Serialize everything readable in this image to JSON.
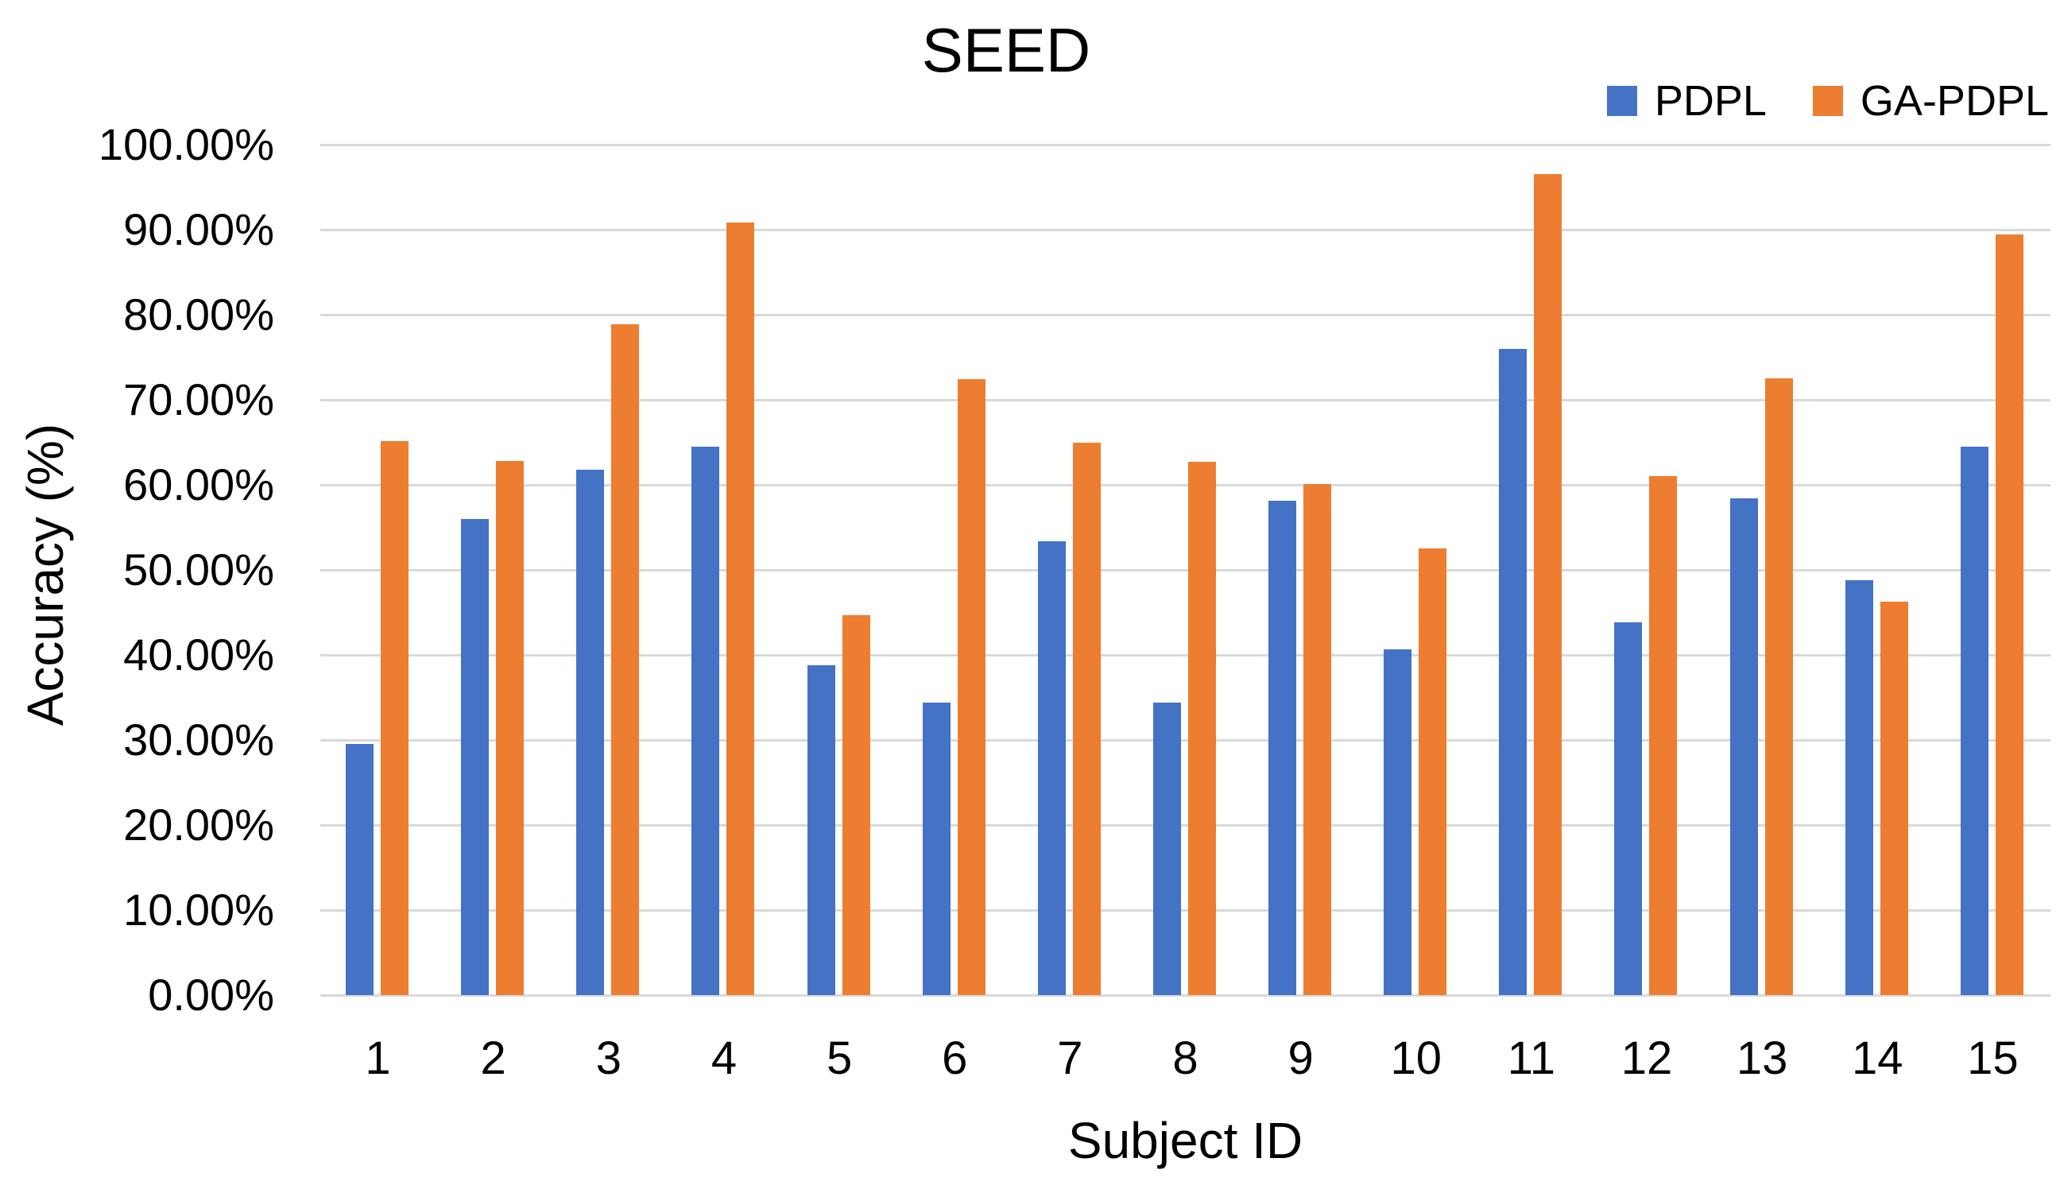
{
  "chart_data": {
    "type": "bar",
    "title": "SEED",
    "xlabel": "Subject ID",
    "ylabel": "Accuracy (%)",
    "categories": [
      "1",
      "2",
      "3",
      "4",
      "5",
      "6",
      "7",
      "8",
      "9",
      "10",
      "11",
      "12",
      "13",
      "14",
      "15"
    ],
    "series": [
      {
        "name": "PDPL",
        "color": "#4472C4",
        "values": [
          29.5,
          56.0,
          61.8,
          64.5,
          38.8,
          34.4,
          53.4,
          34.4,
          58.1,
          40.7,
          76.0,
          43.8,
          58.4,
          48.8,
          64.5
        ]
      },
      {
        "name": "GA-PDPL",
        "color": "#ED7D31",
        "values": [
          65.1,
          62.8,
          78.9,
          90.8,
          44.7,
          72.4,
          65.0,
          62.7,
          60.1,
          52.5,
          96.5,
          61.0,
          72.5,
          46.3,
          89.4
        ]
      }
    ],
    "ylim": [
      0,
      100
    ],
    "ytick_step": 10,
    "y_tick_labels": [
      "0.00%",
      "10.00%",
      "20.00%",
      "30.00%",
      "40.00%",
      "50.00%",
      "60.00%",
      "70.00%",
      "80.00%",
      "90.00%",
      "100.00%"
    ],
    "grid": true,
    "gridline_color": "#D9D9D9",
    "legend_position": "top-right"
  }
}
